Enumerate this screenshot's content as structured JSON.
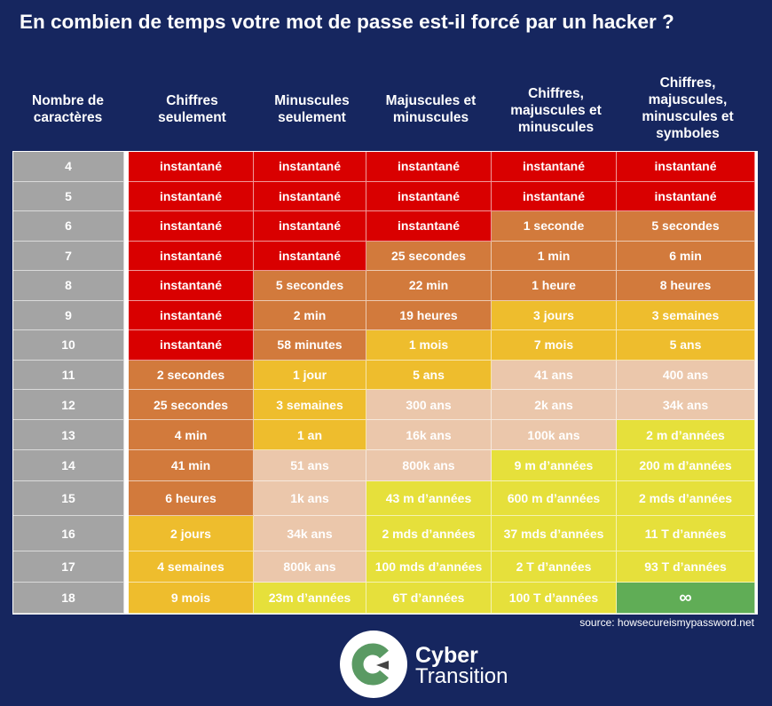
{
  "title": "En combien de temps votre mot de passe est-il forcé par un hacker ?",
  "source": "source: howsecureismypassword.net",
  "brand": {
    "line1": "Cyber",
    "line2": "Transition"
  },
  "colors": {
    "r": "#d90000",
    "o": "#d27a3c",
    "y": "#eebd2d",
    "p": "#ebc7ab",
    "l": "#e6e03b",
    "g": "#60ad56",
    "label": "#a4a4a4",
    "background": "#16265f"
  },
  "chart_data": {
    "type": "table",
    "columns": [
      "Nombre de caractères",
      "Chiffres seulement",
      "Minuscules seulement",
      "Majuscules et minuscules",
      "Chiffres, majuscules et minuscules",
      "Chiffres, majuscules, minuscules et symboles"
    ],
    "rows": [
      {
        "n": "4",
        "cells": [
          [
            "instantané",
            "r"
          ],
          [
            "instantané",
            "r"
          ],
          [
            "instantané",
            "r"
          ],
          [
            "instantané",
            "r"
          ],
          [
            "instantané",
            "r"
          ]
        ]
      },
      {
        "n": "5",
        "cells": [
          [
            "instantané",
            "r"
          ],
          [
            "instantané",
            "r"
          ],
          [
            "instantané",
            "r"
          ],
          [
            "instantané",
            "r"
          ],
          [
            "instantané",
            "r"
          ]
        ]
      },
      {
        "n": "6",
        "cells": [
          [
            "instantané",
            "r"
          ],
          [
            "instantané",
            "r"
          ],
          [
            "instantané",
            "r"
          ],
          [
            "1 seconde",
            "o"
          ],
          [
            "5 secondes",
            "o"
          ]
        ]
      },
      {
        "n": "7",
        "cells": [
          [
            "instantané",
            "r"
          ],
          [
            "instantané",
            "r"
          ],
          [
            "25 secondes",
            "o"
          ],
          [
            "1 min",
            "o"
          ],
          [
            "6 min",
            "o"
          ]
        ]
      },
      {
        "n": "8",
        "cells": [
          [
            "instantané",
            "r"
          ],
          [
            "5 secondes",
            "o"
          ],
          [
            "22 min",
            "o"
          ],
          [
            "1 heure",
            "o"
          ],
          [
            "8 heures",
            "o"
          ]
        ]
      },
      {
        "n": "9",
        "cells": [
          [
            "instantané",
            "r"
          ],
          [
            "2 min",
            "o"
          ],
          [
            "19 heures",
            "o"
          ],
          [
            "3 jours",
            "y"
          ],
          [
            "3 semaines",
            "y"
          ]
        ]
      },
      {
        "n": "10",
        "cells": [
          [
            "instantané",
            "r"
          ],
          [
            "58 minutes",
            "o"
          ],
          [
            "1 mois",
            "y"
          ],
          [
            "7 mois",
            "y"
          ],
          [
            "5 ans",
            "y"
          ]
        ]
      },
      {
        "n": "11",
        "cells": [
          [
            "2 secondes",
            "o"
          ],
          [
            "1 jour",
            "y"
          ],
          [
            "5 ans",
            "y"
          ],
          [
            "41 ans",
            "p"
          ],
          [
            "400 ans",
            "p"
          ]
        ]
      },
      {
        "n": "12",
        "cells": [
          [
            "25 secondes",
            "o"
          ],
          [
            "3 semaines",
            "y"
          ],
          [
            "300 ans",
            "p"
          ],
          [
            "2k ans",
            "p"
          ],
          [
            "34k ans",
            "p"
          ]
        ]
      },
      {
        "n": "13",
        "cells": [
          [
            "4 min",
            "o"
          ],
          [
            "1 an",
            "y"
          ],
          [
            "16k ans",
            "p"
          ],
          [
            "100k ans",
            "p"
          ],
          [
            "2 m d’années",
            "l"
          ]
        ]
      },
      {
        "n": "14",
        "cells": [
          [
            "41 min",
            "o"
          ],
          [
            "51 ans",
            "p"
          ],
          [
            "800k ans",
            "p"
          ],
          [
            "9 m d’années",
            "l"
          ],
          [
            "200 m d’années",
            "l"
          ]
        ]
      },
      {
        "n": "15",
        "cells": [
          [
            "6 heures",
            "o"
          ],
          [
            "1k ans",
            "p"
          ],
          [
            "43 m d’années",
            "l"
          ],
          [
            "600 m d’années",
            "l"
          ],
          [
            "2 mds d’années",
            "l"
          ]
        ]
      },
      {
        "n": "16",
        "cells": [
          [
            "2 jours",
            "y"
          ],
          [
            "34k ans",
            "p"
          ],
          [
            "2 mds d’années",
            "l"
          ],
          [
            "37 mds d’années",
            "l"
          ],
          [
            "11 T d’années",
            "l"
          ]
        ]
      },
      {
        "n": "17",
        "cells": [
          [
            "4 semaines",
            "y"
          ],
          [
            "800k ans",
            "p"
          ],
          [
            "100 mds d’années",
            "l"
          ],
          [
            "2 T d’années",
            "l"
          ],
          [
            "93 T d’années",
            "l"
          ]
        ]
      },
      {
        "n": "18",
        "cells": [
          [
            "9 mois",
            "y"
          ],
          [
            "23m d’années",
            "l"
          ],
          [
            "6T d’années",
            "l"
          ],
          [
            "100 T d’années",
            "l"
          ],
          [
            "∞",
            "g"
          ]
        ]
      }
    ]
  }
}
